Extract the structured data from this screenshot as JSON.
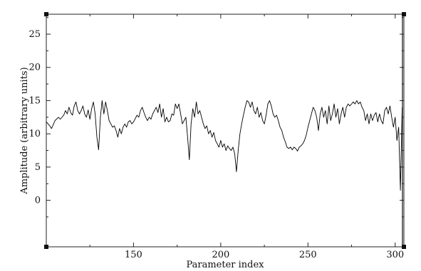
{
  "chart_data": {
    "type": "line",
    "title": "",
    "xlabel": "Parameter index",
    "ylabel": "Amplitude (arbitrary units)",
    "xlim": [
      100,
      305
    ],
    "ylim": [
      -7,
      28
    ],
    "xticks": [
      150,
      200,
      250,
      300
    ],
    "yticks": [
      0,
      5,
      10,
      15,
      20,
      25
    ],
    "grid": false,
    "series": [
      {
        "name": "",
        "color": "#000000",
        "points": [
          [
            100,
            11.8
          ],
          [
            102,
            11.2
          ],
          [
            103,
            10.8
          ],
          [
            105,
            12.0
          ],
          [
            107,
            12.5
          ],
          [
            108,
            12.2
          ],
          [
            110,
            12.8
          ],
          [
            111,
            13.5
          ],
          [
            112,
            13.0
          ],
          [
            113,
            14.0
          ],
          [
            114,
            13.2
          ],
          [
            115,
            12.8
          ],
          [
            116,
            14.2
          ],
          [
            117,
            14.8
          ],
          [
            118,
            13.5
          ],
          [
            119,
            13.0
          ],
          [
            120,
            13.5
          ],
          [
            121,
            14.2
          ],
          [
            122,
            13.0
          ],
          [
            123,
            12.5
          ],
          [
            124,
            13.6
          ],
          [
            125,
            12.2
          ],
          [
            126,
            13.8
          ],
          [
            127,
            14.8
          ],
          [
            128,
            13.0
          ],
          [
            129,
            9.5
          ],
          [
            130,
            7.6
          ],
          [
            131,
            12.5
          ],
          [
            132,
            15.0
          ],
          [
            133,
            13.0
          ],
          [
            134,
            14.8
          ],
          [
            135,
            13.5
          ],
          [
            136,
            12.0
          ],
          [
            137,
            11.5
          ],
          [
            138,
            11.0
          ],
          [
            139,
            11.2
          ],
          [
            140,
            10.5
          ],
          [
            141,
            9.5
          ],
          [
            142,
            10.8
          ],
          [
            143,
            10.0
          ],
          [
            144,
            11.0
          ],
          [
            145,
            11.5
          ],
          [
            146,
            11.0
          ],
          [
            147,
            11.8
          ],
          [
            148,
            12.0
          ],
          [
            149,
            11.5
          ],
          [
            150,
            11.8
          ],
          [
            152,
            12.8
          ],
          [
            153,
            12.5
          ],
          [
            154,
            13.5
          ],
          [
            155,
            14.0
          ],
          [
            156,
            13.2
          ],
          [
            157,
            12.5
          ],
          [
            158,
            12.0
          ],
          [
            159,
            12.5
          ],
          [
            160,
            12.2
          ],
          [
            161,
            13.0
          ],
          [
            162,
            13.5
          ],
          [
            163,
            14.0
          ],
          [
            164,
            13.2
          ],
          [
            165,
            14.5
          ],
          [
            166,
            12.5
          ],
          [
            167,
            13.8
          ],
          [
            168,
            11.8
          ],
          [
            169,
            12.5
          ],
          [
            170,
            11.8
          ],
          [
            171,
            12.0
          ],
          [
            172,
            13.0
          ],
          [
            173,
            12.8
          ],
          [
            174,
            14.5
          ],
          [
            175,
            13.8
          ],
          [
            176,
            14.5
          ],
          [
            177,
            13.0
          ],
          [
            178,
            11.5
          ],
          [
            179,
            12.0
          ],
          [
            180,
            12.5
          ],
          [
            181,
            9.5
          ],
          [
            182,
            6.1
          ],
          [
            183,
            11.5
          ],
          [
            184,
            13.8
          ],
          [
            185,
            12.5
          ],
          [
            186,
            14.8
          ],
          [
            187,
            13.0
          ],
          [
            188,
            13.5
          ],
          [
            189,
            12.5
          ],
          [
            190,
            11.5
          ],
          [
            191,
            10.8
          ],
          [
            192,
            11.2
          ],
          [
            193,
            10.0
          ],
          [
            194,
            10.5
          ],
          [
            195,
            9.5
          ],
          [
            196,
            10.2
          ],
          [
            197,
            9.0
          ],
          [
            198,
            8.5
          ],
          [
            199,
            8.0
          ],
          [
            200,
            9.0
          ],
          [
            201,
            8.0
          ],
          [
            202,
            8.5
          ],
          [
            203,
            7.5
          ],
          [
            204,
            8.2
          ],
          [
            205,
            7.8
          ],
          [
            206,
            7.5
          ],
          [
            207,
            8.0
          ],
          [
            208,
            7.0
          ],
          [
            209,
            4.3
          ],
          [
            210,
            7.5
          ],
          [
            211,
            10.0
          ],
          [
            212,
            11.5
          ],
          [
            213,
            12.8
          ],
          [
            214,
            14.0
          ],
          [
            215,
            15.0
          ],
          [
            216,
            14.8
          ],
          [
            217,
            14.0
          ],
          [
            218,
            14.8
          ],
          [
            219,
            13.5
          ],
          [
            220,
            13.0
          ],
          [
            221,
            14.0
          ],
          [
            222,
            12.5
          ],
          [
            223,
            13.2
          ],
          [
            224,
            12.0
          ],
          [
            225,
            11.5
          ],
          [
            226,
            12.8
          ],
          [
            227,
            14.5
          ],
          [
            228,
            15.0
          ],
          [
            229,
            14.2
          ],
          [
            230,
            13.0
          ],
          [
            231,
            12.5
          ],
          [
            232,
            12.8
          ],
          [
            233,
            12.0
          ],
          [
            234,
            11.0
          ],
          [
            235,
            10.5
          ],
          [
            236,
            9.5
          ],
          [
            237,
            8.8
          ],
          [
            238,
            8.0
          ],
          [
            239,
            7.8
          ],
          [
            240,
            8.0
          ],
          [
            241,
            7.6
          ],
          [
            242,
            8.0
          ],
          [
            243,
            7.8
          ],
          [
            244,
            7.4
          ],
          [
            245,
            8.0
          ],
          [
            246,
            8.2
          ],
          [
            247,
            8.5
          ],
          [
            248,
            9.0
          ],
          [
            249,
            9.8
          ],
          [
            250,
            11.0
          ],
          [
            251,
            12.0
          ],
          [
            252,
            13.0
          ],
          [
            253,
            14.0
          ],
          [
            254,
            13.5
          ],
          [
            255,
            12.5
          ],
          [
            256,
            10.5
          ],
          [
            257,
            13.0
          ],
          [
            258,
            14.0
          ],
          [
            259,
            12.5
          ],
          [
            260,
            13.5
          ],
          [
            261,
            11.5
          ],
          [
            262,
            14.2
          ],
          [
            263,
            12.0
          ],
          [
            264,
            13.0
          ],
          [
            265,
            14.5
          ],
          [
            266,
            12.5
          ],
          [
            267,
            13.8
          ],
          [
            268,
            11.5
          ],
          [
            269,
            13.0
          ],
          [
            270,
            14.0
          ],
          [
            271,
            12.5
          ],
          [
            272,
            14.0
          ],
          [
            273,
            14.5
          ],
          [
            274,
            14.2
          ],
          [
            275,
            14.5
          ],
          [
            276,
            14.8
          ],
          [
            277,
            14.5
          ],
          [
            278,
            15.0
          ],
          [
            279,
            14.5
          ],
          [
            280,
            14.8
          ],
          [
            281,
            14.0
          ],
          [
            282,
            13.5
          ],
          [
            283,
            12.0
          ],
          [
            284,
            13.0
          ],
          [
            285,
            11.5
          ],
          [
            286,
            13.0
          ],
          [
            287,
            12.0
          ],
          [
            288,
            12.8
          ],
          [
            289,
            13.2
          ],
          [
            290,
            11.8
          ],
          [
            291,
            13.0
          ],
          [
            292,
            12.0
          ],
          [
            293,
            11.5
          ],
          [
            294,
            13.5
          ],
          [
            295,
            14.0
          ],
          [
            296,
            13.0
          ],
          [
            297,
            14.2
          ],
          [
            298,
            12.5
          ],
          [
            299,
            11.0
          ],
          [
            300,
            12.5
          ],
          [
            301,
            9.0
          ],
          [
            302,
            11.0
          ],
          [
            303,
            1.5
          ],
          [
            304,
            14.0
          ]
        ]
      }
    ]
  }
}
